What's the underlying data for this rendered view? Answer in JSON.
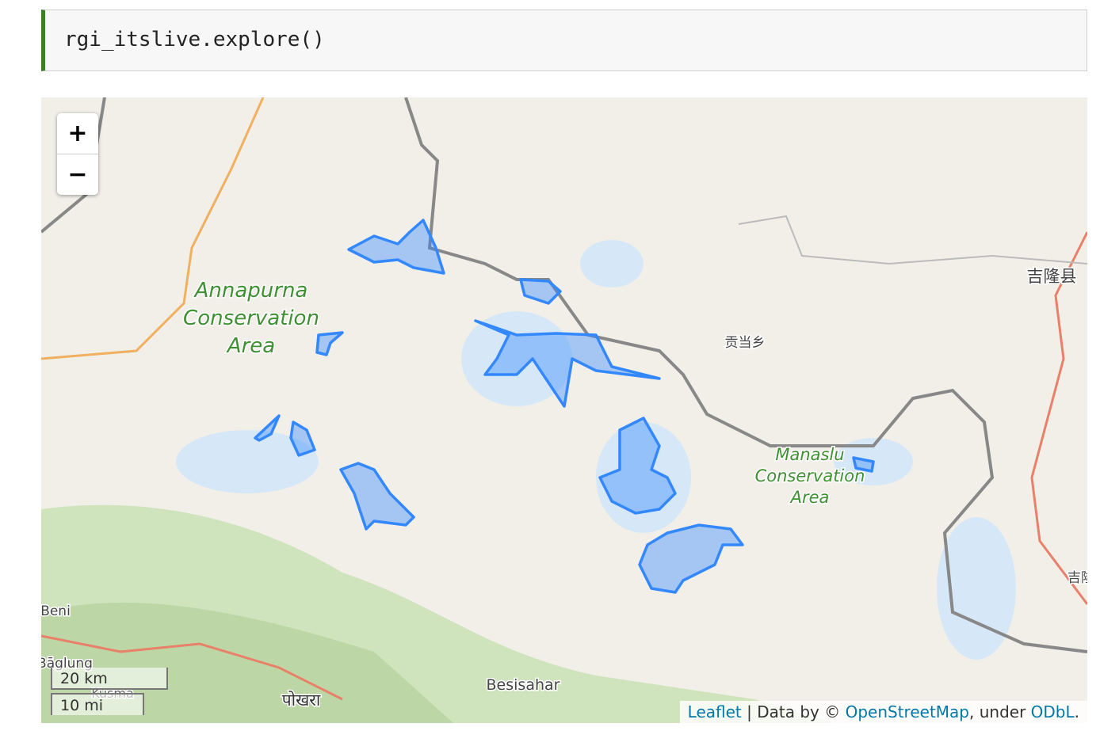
{
  "cell": {
    "code": "rgi_itslive.explore()"
  },
  "map": {
    "zoom_in": "+",
    "zoom_out": "−",
    "labels": [
      {
        "lines": [
          "Annapurna",
          "Conservation",
          "Area"
        ]
      },
      {
        "lines": [
          "Manaslu",
          "Conservation",
          "Area"
        ]
      },
      {
        "lines": [
          "贡当乡"
        ]
      },
      {
        "lines": [
          "吉隆县"
        ]
      },
      {
        "lines": [
          "吉隆镇"
        ]
      },
      {
        "lines": [
          "Beni"
        ]
      },
      {
        "lines": [
          "Bāglung"
        ]
      },
      {
        "lines": [
          "Kusma"
        ]
      },
      {
        "lines": [
          "Besisahar"
        ]
      },
      {
        "lines": [
          "पोखरा"
        ]
      }
    ],
    "scale": {
      "metric": "20 km",
      "imperial": "10 mi"
    },
    "attribution": {
      "leaflet": "Leaflet",
      "sep": "| Data by ©",
      "osm": "OpenStreetMap",
      "under": ", under",
      "license": "ODbL",
      "end": "."
    }
  }
}
